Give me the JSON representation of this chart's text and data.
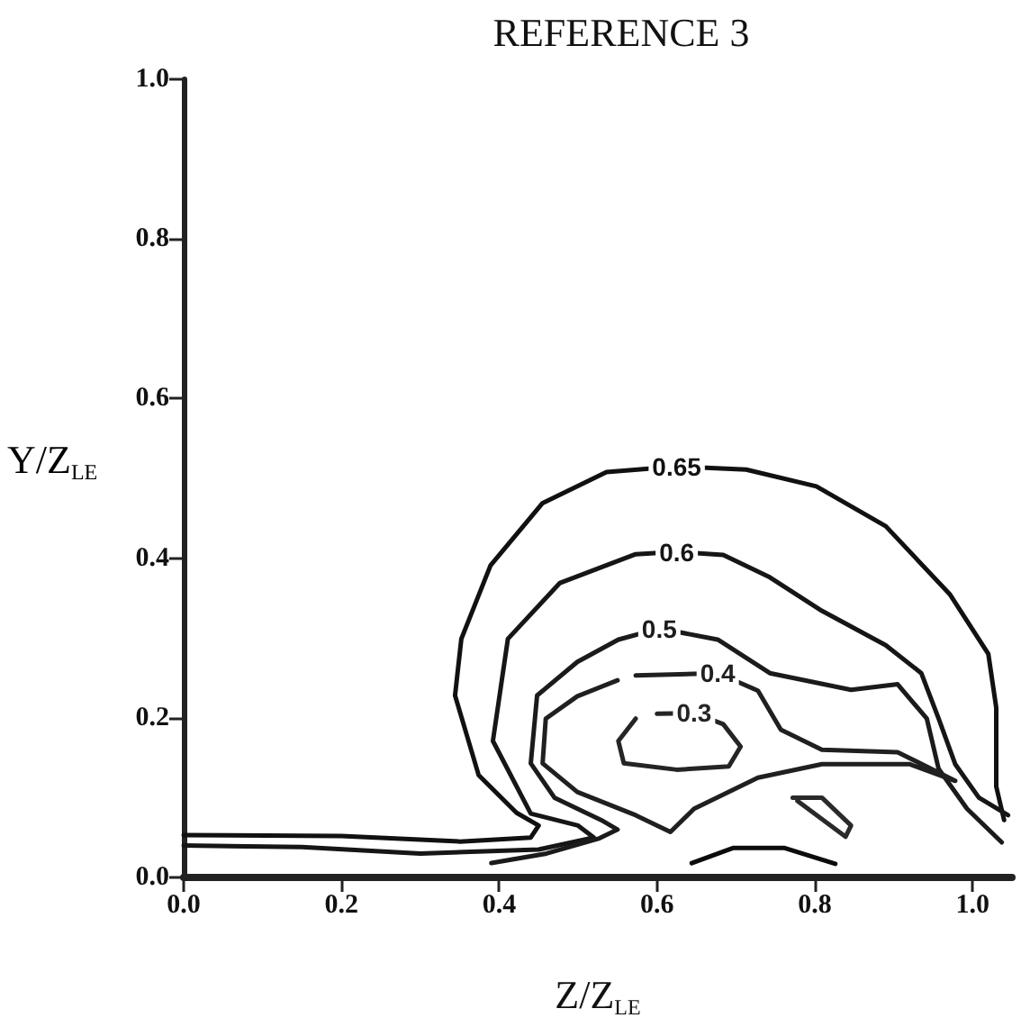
{
  "chart_data": {
    "type": "line",
    "title": "REFERENCE 3",
    "xlabel": "Z/Z$_{LE}$",
    "ylabel": "Y/Z$_{LE}$",
    "xlim": [
      0,
      1.05
    ],
    "xticks": [
      {
        "value": 0,
        "label": "0.0"
      },
      0.2,
      0.4,
      0.6,
      0.8,
      {
        "value": 1,
        "label": "1.0"
      }
    ],
    "ylim": [
      0,
      1.0
    ],
    "yticks": [
      {
        "value": 0,
        "label": "0.0"
      },
      0.2,
      0.4,
      0.6,
      0.8,
      {
        "value": 1,
        "label": "1.0"
      }
    ],
    "grid": false,
    "marker": "none",
    "line_style": "solid",
    "legend": false,
    "series": [
      {
        "name": "0.65",
        "color": "#111111",
        "x": [
          0,
          0.2,
          0.35,
          0.44,
          0.45,
          0.422,
          0.374,
          0.344,
          0.352,
          0.389,
          0.455,
          0.536,
          0.625,
          0.713,
          0.802,
          0.89,
          0.971,
          1.02,
          1.03,
          1.03,
          1.04
        ],
        "values": [
          0.053,
          0.052,
          0.045,
          0.05,
          0.065,
          0.081,
          0.128,
          0.228,
          0.299,
          0.391,
          0.469,
          0.508,
          0.515,
          0.511,
          0.49,
          0.44,
          0.355,
          0.28,
          0.213,
          0.114,
          0.072
        ]
      },
      {
        "name": "0.6",
        "color": "#161616",
        "x": [
          0,
          0.15,
          0.3,
          0.45,
          0.52,
          0.5,
          0.44,
          0.392,
          0.411,
          0.477,
          0.573,
          0.625,
          0.684,
          0.743,
          0.809,
          0.89,
          0.935,
          0.957,
          0.978,
          1.008,
          1.045
        ],
        "values": [
          0.04,
          0.038,
          0.03,
          0.035,
          0.05,
          0.065,
          0.08,
          0.171,
          0.299,
          0.369,
          0.405,
          0.408,
          0.404,
          0.376,
          0.334,
          0.291,
          0.256,
          0.199,
          0.142,
          0.1,
          0.078
        ]
      },
      {
        "name": "0.5",
        "color": "#1b1b1b",
        "x": [
          0.39,
          0.46,
          0.527,
          0.55,
          0.529,
          0.47,
          0.44,
          0.448,
          0.499,
          0.551,
          0.603,
          0.677,
          0.743,
          0.846,
          0.905,
          0.942,
          0.957,
          0.993,
          1.037
        ],
        "values": [
          0.018,
          0.03,
          0.049,
          0.06,
          0.072,
          0.1,
          0.143,
          0.228,
          0.27,
          0.298,
          0.312,
          0.298,
          0.256,
          0.235,
          0.242,
          0.199,
          0.136,
          0.086,
          0.044
        ]
      },
      {
        "name": "0.4",
        "color": "#202020",
        "x": [
          0.573,
          0.677,
          0.728,
          0.757,
          0.809,
          0.905,
          0.978,
          0.92,
          0.809,
          0.728,
          0.647,
          0.617,
          0.573,
          0.499,
          0.455,
          0.459,
          0.499,
          0.55
        ],
        "values": [
          0.253,
          0.256,
          0.234,
          0.185,
          0.16,
          0.157,
          0.121,
          0.142,
          0.142,
          0.125,
          0.086,
          0.057,
          0.078,
          0.107,
          0.143,
          0.199,
          0.227,
          0.247
        ]
      },
      {
        "name": "0.3",
        "color": "#252525",
        "x": [
          0.573,
          0.551,
          0.558,
          0.625,
          0.691,
          0.706,
          0.684,
          0.647,
          0.6
        ],
        "values": [
          0.199,
          0.171,
          0.143,
          0.135,
          0.139,
          0.164,
          0.192,
          0.206,
          0.205
        ]
      },
      {
        "color": "#2a2a2a",
        "x": [
          0.772,
          0.809,
          0.846,
          0.839,
          0.801,
          0.778
        ],
        "values": [
          0.1,
          0.1,
          0.065,
          0.051,
          0.079,
          0.096
        ]
      },
      {
        "color": "#0c0c0c",
        "x": [
          0.644,
          0.697,
          0.761,
          0.826
        ],
        "values": [
          0.018,
          0.037,
          0.037,
          0.017
        ]
      }
    ]
  }
}
